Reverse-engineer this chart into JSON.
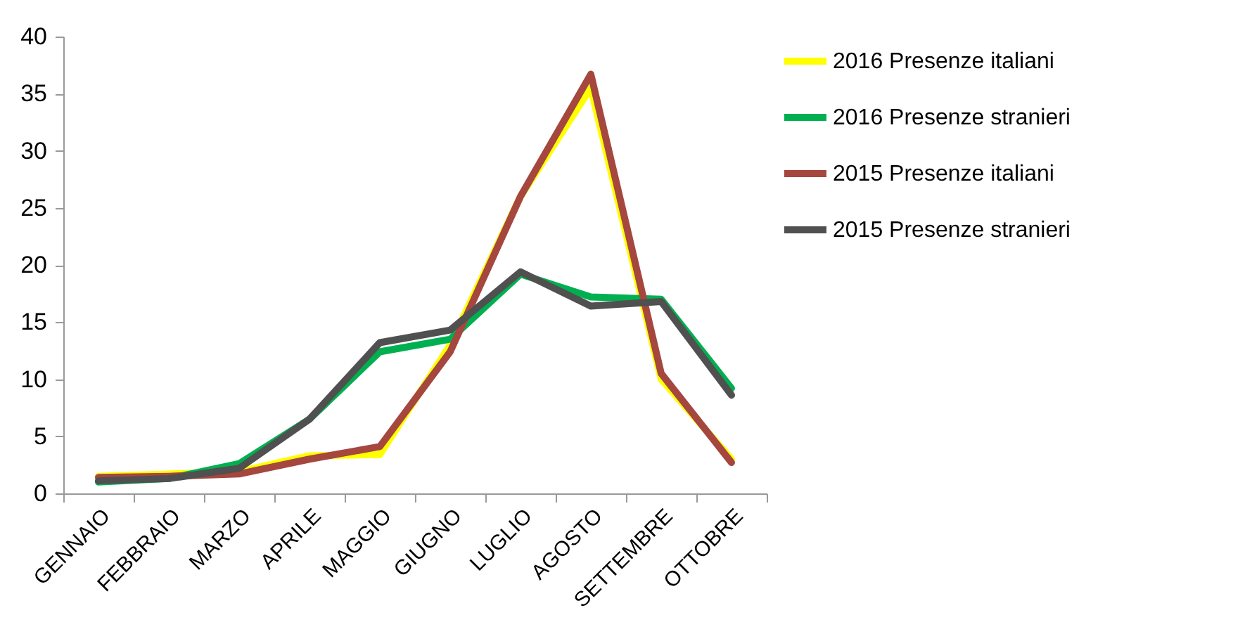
{
  "chart_data": {
    "type": "line",
    "categories": [
      "GENNAIO",
      "FEBBRAIO",
      "MARZO",
      "APRILE",
      "MAGGIO",
      "GIUGNO",
      "LUGLIO",
      "AGOSTO",
      "SETTEMBRE",
      "OTTOBRE"
    ],
    "series": [
      {
        "name": "2016 Presenze italiani",
        "color": "#ffff00",
        "values": [
          1.5,
          1.7,
          1.9,
          3.3,
          3.4,
          13,
          26,
          35.5,
          10,
          3
        ]
      },
      {
        "name": "2016 Presenze stranieri",
        "color": "#00b050",
        "values": [
          1.0,
          1.3,
          2.6,
          6.5,
          12.4,
          13.5,
          19.2,
          17.2,
          17,
          9.2
        ]
      },
      {
        "name": "2015 Presenze italiani",
        "color": "#a5473f",
        "values": [
          1.4,
          1.5,
          1.7,
          3,
          4.1,
          12.4,
          26,
          36.7,
          10.5,
          2.7
        ]
      },
      {
        "name": "2015 Presenze stranieri",
        "color": "#505050",
        "values": [
          1.1,
          1.3,
          2.2,
          6.5,
          13.2,
          14.3,
          19.4,
          16.4,
          16.8,
          8.6
        ]
      }
    ],
    "ylim": [
      0,
      40
    ],
    "yticks": [
      0,
      5,
      10,
      15,
      20,
      25,
      30,
      35,
      40
    ],
    "grid": false,
    "legend": "right",
    "marker": "none",
    "line_style": "solid"
  }
}
